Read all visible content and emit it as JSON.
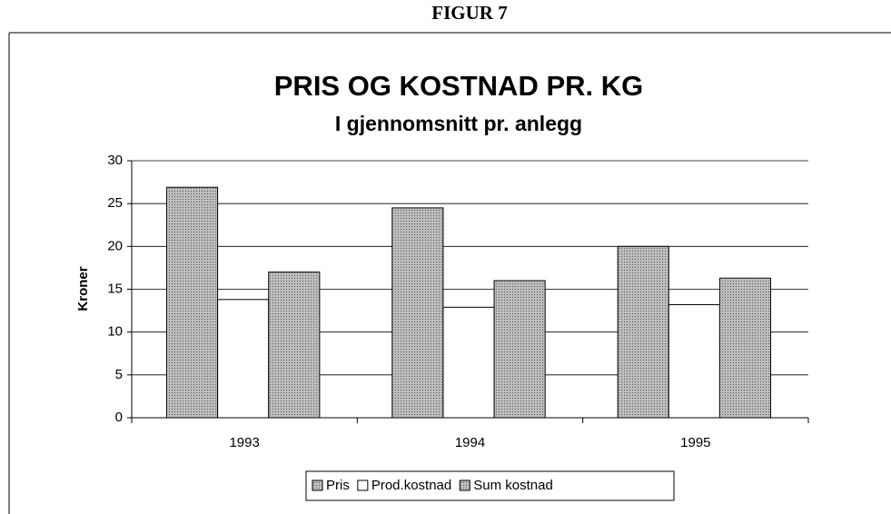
{
  "header": "FIGUR 7",
  "chart_data": {
    "type": "bar",
    "title": "PRIS OG KOSTNAD PR. KG",
    "subtitle": "I gjennomsnitt pr. anlegg",
    "y_label": "Kroner",
    "categories": [
      "1993",
      "1994",
      "1995"
    ],
    "series": [
      {
        "name": "Pris",
        "color": "#bdbdbd",
        "values": [
          26.9,
          24.5,
          20
        ]
      },
      {
        "name": "Prod.kostnad",
        "color": "#ffffff",
        "values": [
          13.8,
          12.9,
          13.2
        ]
      },
      {
        "name": "Sum kostnad",
        "color": "#bdbdbd",
        "values": [
          17,
          16,
          16.3
        ]
      }
    ],
    "ylim": [
      0,
      30
    ],
    "yticks": [
      0,
      5,
      10,
      15,
      20,
      25,
      30
    ],
    "grid": true,
    "legend": "bottom"
  }
}
